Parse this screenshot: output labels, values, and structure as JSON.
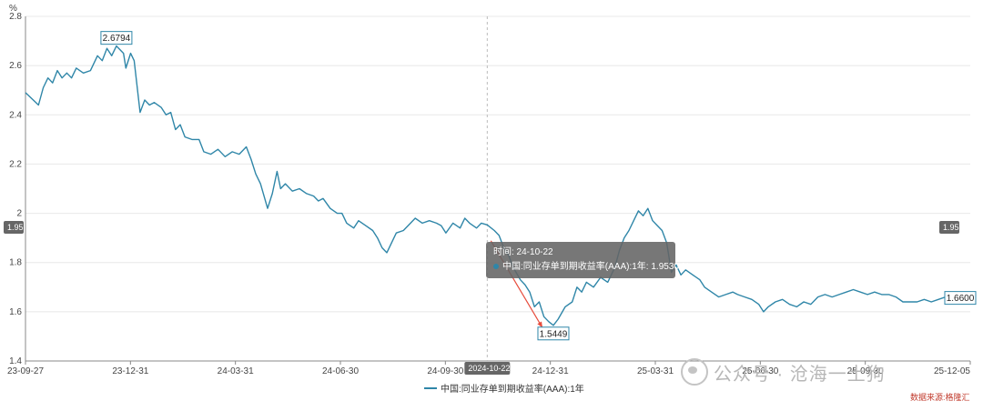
{
  "chart_data": {
    "type": "line",
    "unit": "%",
    "ylim": [
      1.4,
      2.8
    ],
    "yticks": [
      "1.4",
      "1.6",
      "1.8",
      "2",
      "2.2",
      "2.4",
      "2.6",
      "2.8"
    ],
    "xticks": [
      "23-09-27",
      "23-12-31",
      "24-03-31",
      "24-06-30",
      "24-09-30",
      "24-12-31",
      "25-03-31",
      "25-06-30",
      "25-09-30",
      "25-12-05"
    ],
    "grid": true,
    "legend_position": "bottom-center",
    "series": [
      {
        "name": "中国:同业存单到期收益率(AAA):1年",
        "color": "#2f86a8",
        "points": [
          [
            "2023-09-27",
            2.49
          ],
          [
            "2023-10-08",
            2.44
          ],
          [
            "2023-10-12",
            2.51
          ],
          [
            "2023-10-16",
            2.55
          ],
          [
            "2023-10-20",
            2.53
          ],
          [
            "2023-10-24",
            2.58
          ],
          [
            "2023-10-28",
            2.55
          ],
          [
            "2023-11-01",
            2.57
          ],
          [
            "2023-11-05",
            2.55
          ],
          [
            "2023-11-09",
            2.59
          ],
          [
            "2023-11-15",
            2.57
          ],
          [
            "2023-11-21",
            2.58
          ],
          [
            "2023-11-27",
            2.64
          ],
          [
            "2023-12-01",
            2.62
          ],
          [
            "2023-12-05",
            2.67
          ],
          [
            "2023-12-09",
            2.64
          ],
          [
            "2023-12-13",
            2.6794
          ],
          [
            "2023-12-19",
            2.65
          ],
          [
            "2023-12-21",
            2.59
          ],
          [
            "2023-12-25",
            2.65
          ],
          [
            "2023-12-28",
            2.62
          ],
          [
            "2024-01-02",
            2.41
          ],
          [
            "2024-01-06",
            2.46
          ],
          [
            "2024-01-10",
            2.44
          ],
          [
            "2024-01-14",
            2.45
          ],
          [
            "2024-01-20",
            2.43
          ],
          [
            "2024-01-24",
            2.4
          ],
          [
            "2024-01-28",
            2.41
          ],
          [
            "2024-02-01",
            2.34
          ],
          [
            "2024-02-05",
            2.36
          ],
          [
            "2024-02-09",
            2.31
          ],
          [
            "2024-02-15",
            2.3
          ],
          [
            "2024-02-21",
            2.3
          ],
          [
            "2024-02-25",
            2.25
          ],
          [
            "2024-03-02",
            2.24
          ],
          [
            "2024-03-08",
            2.26
          ],
          [
            "2024-03-14",
            2.23
          ],
          [
            "2024-03-20",
            2.25
          ],
          [
            "2024-03-26",
            2.24
          ],
          [
            "2024-04-01",
            2.27
          ],
          [
            "2024-04-05",
            2.22
          ],
          [
            "2024-04-09",
            2.16
          ],
          [
            "2024-04-13",
            2.12
          ],
          [
            "2024-04-19",
            2.02
          ],
          [
            "2024-04-23",
            2.08
          ],
          [
            "2024-04-27",
            2.17
          ],
          [
            "2024-04-30",
            2.1
          ],
          [
            "2024-05-04",
            2.12
          ],
          [
            "2024-05-10",
            2.09
          ],
          [
            "2024-05-16",
            2.1
          ],
          [
            "2024-05-22",
            2.08
          ],
          [
            "2024-05-28",
            2.07
          ],
          [
            "2024-06-01",
            2.05
          ],
          [
            "2024-06-05",
            2.06
          ],
          [
            "2024-06-11",
            2.02
          ],
          [
            "2024-06-17",
            2.0
          ],
          [
            "2024-06-21",
            2.0
          ],
          [
            "2024-06-25",
            1.96
          ],
          [
            "2024-07-01",
            1.94
          ],
          [
            "2024-07-05",
            1.97
          ],
          [
            "2024-07-11",
            1.95
          ],
          [
            "2024-07-17",
            1.93
          ],
          [
            "2024-07-21",
            1.9
          ],
          [
            "2024-07-25",
            1.86
          ],
          [
            "2024-07-29",
            1.84
          ],
          [
            "2024-08-02",
            1.88
          ],
          [
            "2024-08-06",
            1.92
          ],
          [
            "2024-08-12",
            1.93
          ],
          [
            "2024-08-16",
            1.95
          ],
          [
            "2024-08-22",
            1.98
          ],
          [
            "2024-08-28",
            1.96
          ],
          [
            "2024-09-03",
            1.97
          ],
          [
            "2024-09-09",
            1.96
          ],
          [
            "2024-09-13",
            1.95
          ],
          [
            "2024-09-17",
            1.92
          ],
          [
            "2024-09-23",
            1.96
          ],
          [
            "2024-09-29",
            1.94
          ],
          [
            "2024-10-03",
            1.98
          ],
          [
            "2024-10-07",
            1.96
          ],
          [
            "2024-10-13",
            1.94
          ],
          [
            "2024-10-17",
            1.96
          ],
          [
            "2024-10-22",
            1.953
          ],
          [
            "2024-10-28",
            1.93
          ],
          [
            "2024-11-01",
            1.91
          ],
          [
            "2024-11-05",
            1.86
          ],
          [
            "2024-11-09",
            1.83
          ],
          [
            "2024-11-13",
            1.78
          ],
          [
            "2024-11-19",
            1.73
          ],
          [
            "2024-11-23",
            1.71
          ],
          [
            "2024-11-27",
            1.68
          ],
          [
            "2024-12-01",
            1.62
          ],
          [
            "2024-12-05",
            1.64
          ],
          [
            "2024-12-09",
            1.58
          ],
          [
            "2024-12-13",
            1.56
          ],
          [
            "2024-12-17",
            1.5449
          ],
          [
            "2024-12-21",
            1.57
          ],
          [
            "2024-12-27",
            1.62
          ],
          [
            "2025-01-02",
            1.64
          ],
          [
            "2025-01-06",
            1.7
          ],
          [
            "2025-01-10",
            1.68
          ],
          [
            "2025-01-14",
            1.72
          ],
          [
            "2025-01-20",
            1.7
          ],
          [
            "2025-01-26",
            1.74
          ],
          [
            "2025-02-01",
            1.72
          ],
          [
            "2025-02-07",
            1.78
          ],
          [
            "2025-02-11",
            1.85
          ],
          [
            "2025-02-15",
            1.9
          ],
          [
            "2025-02-19",
            1.93
          ],
          [
            "2025-02-23",
            1.97
          ],
          [
            "2025-02-27",
            2.01
          ],
          [
            "2025-03-03",
            1.99
          ],
          [
            "2025-03-07",
            2.02
          ],
          [
            "2025-03-11",
            1.97
          ],
          [
            "2025-03-15",
            1.95
          ],
          [
            "2025-03-19",
            1.93
          ],
          [
            "2025-03-23",
            1.88
          ],
          [
            "2025-03-27",
            1.76
          ],
          [
            "2025-03-31",
            1.79
          ],
          [
            "2025-04-04",
            1.75
          ],
          [
            "2025-04-08",
            1.77
          ],
          [
            "2025-04-14",
            1.75
          ],
          [
            "2025-04-20",
            1.73
          ],
          [
            "2025-04-24",
            1.7
          ],
          [
            "2025-04-30",
            1.68
          ],
          [
            "2025-05-06",
            1.66
          ],
          [
            "2025-05-12",
            1.67
          ],
          [
            "2025-05-18",
            1.68
          ],
          [
            "2025-05-22",
            1.67
          ],
          [
            "2025-05-28",
            1.66
          ],
          [
            "2025-06-03",
            1.65
          ],
          [
            "2025-06-09",
            1.63
          ],
          [
            "2025-06-13",
            1.6
          ],
          [
            "2025-06-17",
            1.62
          ],
          [
            "2025-06-23",
            1.64
          ],
          [
            "2025-06-29",
            1.65
          ],
          [
            "2025-07-05",
            1.63
          ],
          [
            "2025-07-11",
            1.62
          ],
          [
            "2025-07-17",
            1.64
          ],
          [
            "2025-07-23",
            1.63
          ],
          [
            "2025-07-29",
            1.66
          ],
          [
            "2025-08-04",
            1.67
          ],
          [
            "2025-08-10",
            1.66
          ],
          [
            "2025-08-16",
            1.67
          ],
          [
            "2025-08-22",
            1.68
          ],
          [
            "2025-08-28",
            1.69
          ],
          [
            "2025-09-03",
            1.68
          ],
          [
            "2025-09-09",
            1.67
          ],
          [
            "2025-09-15",
            1.68
          ],
          [
            "2025-09-21",
            1.67
          ],
          [
            "2025-09-27",
            1.67
          ],
          [
            "2025-10-03",
            1.66
          ],
          [
            "2025-10-09",
            1.64
          ],
          [
            "2025-10-15",
            1.64
          ],
          [
            "2025-10-21",
            1.64
          ],
          [
            "2025-10-27",
            1.65
          ],
          [
            "2025-11-02",
            1.64
          ],
          [
            "2025-11-08",
            1.65
          ],
          [
            "2025-11-14",
            1.66
          ],
          [
            "2025-11-20",
            1.65
          ],
          [
            "2025-11-26",
            1.66
          ],
          [
            "2025-12-01",
            1.66
          ],
          [
            "2025-12-05",
            1.66
          ]
        ]
      }
    ],
    "callouts": [
      {
        "date": "2023-12-13",
        "label": "2.6794"
      },
      {
        "date": "2024-12-17",
        "label": "1.5449"
      },
      {
        "date": "2025-12-05",
        "label": "1.6600"
      }
    ],
    "crosshair": {
      "date": "2024-10-22",
      "x_label": "2024-10-22",
      "y_label": "1.95"
    },
    "tooltip": {
      "time_label": "时间: 24-10-22",
      "series_label": "中国:同业存单到期收益率(AAA):1年:",
      "value_text": "1.9530",
      "unit_text": "%"
    }
  },
  "watermark": {
    "text": "公众号 · 沧海一土狗"
  },
  "logo": {
    "text": "数据来源:格隆汇"
  }
}
